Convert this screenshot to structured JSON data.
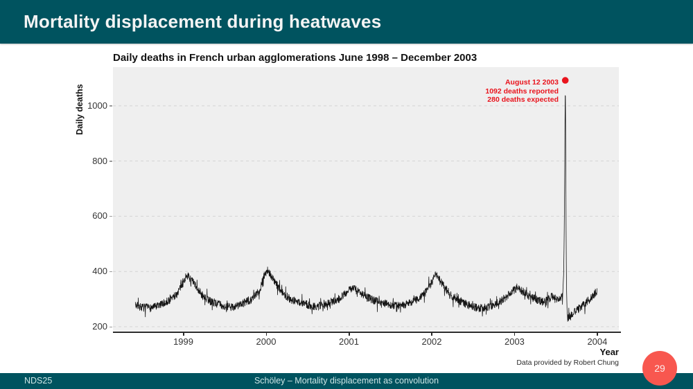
{
  "header": {
    "title": "Mortality displacement during heatwaves"
  },
  "footer": {
    "left": "NDS25",
    "center": "Schöley – Mortality displacement as convolution",
    "page_number": "29"
  },
  "caption": "Data provided by Robert Chung",
  "colors": {
    "teal": "#00535F",
    "coral": "#F8574F",
    "red": "#E9141D",
    "line": "#141414",
    "panel": "#EFEFEF",
    "grid": "#D4D4D4"
  },
  "chart_data": {
    "type": "line",
    "title": "Daily deaths in French urban agglomerations June 1998 – December 2003",
    "xlabel": "Year",
    "ylabel": "Daily deaths",
    "series_name": "Daily deaths",
    "x_tick_values": [
      1999,
      2000,
      2001,
      2002,
      2003,
      2004
    ],
    "x_tick_labels": [
      "1999",
      "2000",
      "2001",
      "2002",
      "2003",
      "2004"
    ],
    "y_tick_values": [
      200,
      400,
      600,
      800,
      1000
    ],
    "y_tick_labels": [
      "200",
      "400",
      "600",
      "800",
      "1000"
    ],
    "xlim": [
      1998.15,
      2004.26
    ],
    "ylim": [
      185,
      1140
    ],
    "time_range": [
      1998.42,
      2004.0
    ],
    "grid": "horizontal-dashed",
    "noise_amplitude": 15,
    "noise_seed": 7,
    "seasonal_anchors": [
      [
        1998.42,
        278
      ],
      [
        1998.5,
        270
      ],
      [
        1998.58,
        268
      ],
      [
        1998.67,
        272
      ],
      [
        1998.75,
        283
      ],
      [
        1998.83,
        295
      ],
      [
        1998.92,
        318
      ],
      [
        1999.0,
        360
      ],
      [
        1999.04,
        388
      ],
      [
        1999.08,
        375
      ],
      [
        1999.17,
        340
      ],
      [
        1999.25,
        305
      ],
      [
        1999.33,
        292
      ],
      [
        1999.42,
        283
      ],
      [
        1999.5,
        273
      ],
      [
        1999.58,
        270
      ],
      [
        1999.67,
        278
      ],
      [
        1999.75,
        288
      ],
      [
        1999.83,
        300
      ],
      [
        1999.92,
        330
      ],
      [
        1999.98,
        390
      ],
      [
        2000.02,
        405
      ],
      [
        2000.06,
        385
      ],
      [
        2000.13,
        350
      ],
      [
        2000.21,
        320
      ],
      [
        2000.29,
        300
      ],
      [
        2000.38,
        290
      ],
      [
        2000.46,
        283
      ],
      [
        2000.54,
        276
      ],
      [
        2000.63,
        273
      ],
      [
        2000.71,
        280
      ],
      [
        2000.79,
        290
      ],
      [
        2000.88,
        303
      ],
      [
        2000.96,
        320
      ],
      [
        2001.04,
        342
      ],
      [
        2001.1,
        330
      ],
      [
        2001.17,
        315
      ],
      [
        2001.25,
        302
      ],
      [
        2001.33,
        293
      ],
      [
        2001.42,
        287
      ],
      [
        2001.5,
        280
      ],
      [
        2001.58,
        276
      ],
      [
        2001.67,
        280
      ],
      [
        2001.75,
        290
      ],
      [
        2001.83,
        300
      ],
      [
        2001.92,
        322
      ],
      [
        2002.0,
        360
      ],
      [
        2002.04,
        390
      ],
      [
        2002.08,
        378
      ],
      [
        2002.15,
        345
      ],
      [
        2002.23,
        315
      ],
      [
        2002.31,
        298
      ],
      [
        2002.4,
        285
      ],
      [
        2002.48,
        273
      ],
      [
        2002.56,
        267
      ],
      [
        2002.65,
        270
      ],
      [
        2002.73,
        277
      ],
      [
        2002.81,
        288
      ],
      [
        2002.9,
        305
      ],
      [
        2002.98,
        330
      ],
      [
        2003.04,
        340
      ],
      [
        2003.1,
        328
      ],
      [
        2003.17,
        312
      ],
      [
        2003.25,
        300
      ],
      [
        2003.33,
        292
      ],
      [
        2003.42,
        300
      ],
      [
        2003.45,
        315
      ],
      [
        2003.49,
        300
      ],
      [
        2003.53,
        298
      ],
      [
        2003.57,
        308
      ],
      [
        2003.583,
        320
      ],
      [
        2003.64,
        232
      ],
      [
        2003.68,
        243
      ],
      [
        2003.73,
        253
      ],
      [
        2003.79,
        268
      ],
      [
        2003.85,
        285
      ],
      [
        2003.92,
        302
      ],
      [
        2004.0,
        332
      ]
    ],
    "heatwave_spike": {
      "date": "August 12 2003",
      "deaths_reported": 1092,
      "deaths_expected": 280,
      "t_peak": 2003.613,
      "profile": [
        [
          2003.583,
          330
        ],
        [
          2003.592,
          380
        ],
        [
          2003.6,
          520
        ],
        [
          2003.606,
          760
        ],
        [
          2003.613,
          1092
        ],
        [
          2003.618,
          900
        ],
        [
          2003.623,
          520
        ],
        [
          2003.628,
          350
        ],
        [
          2003.633,
          280
        ],
        [
          2003.636,
          240
        ]
      ]
    },
    "annotation": {
      "line1": "August 12 2003",
      "line2": "1092 deaths reported",
      "line3": "280 deaths expected"
    }
  }
}
